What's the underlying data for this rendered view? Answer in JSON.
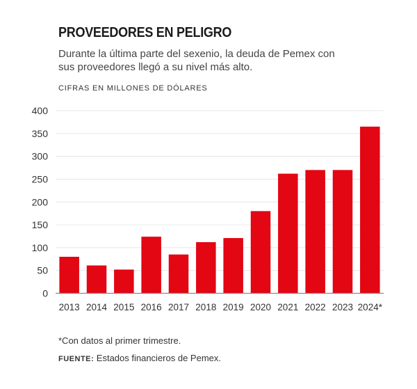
{
  "title": "PROVEEDORES EN PELIGRO",
  "subtitle": "Durante la última parte del sexenio, la deuda de Pemex con sus proveedores llegó a su nivel más alto.",
  "note": "*Con datos al primer trimestre.",
  "source_label": "FUENTE:",
  "source_text": " Estados financieros de Pemex.",
  "chart_data": {
    "type": "bar",
    "title": "PROVEEDORES EN PELIGRO",
    "ylabel": "CIFRAS EN MILLONES DE DÓLARES",
    "xlabel": "",
    "categories": [
      "2013",
      "2014",
      "2015",
      "2016",
      "2017",
      "2018",
      "2019",
      "2020",
      "2021",
      "2022",
      "2023",
      "2024*"
    ],
    "values": [
      80,
      61,
      52,
      124,
      85,
      112,
      121,
      180,
      262,
      270,
      270,
      365
    ],
    "ylim": [
      0,
      400
    ],
    "yticks": [
      0,
      50,
      100,
      150,
      200,
      250,
      300,
      350,
      400
    ],
    "grid": true,
    "bar_color": "#e30613"
  }
}
